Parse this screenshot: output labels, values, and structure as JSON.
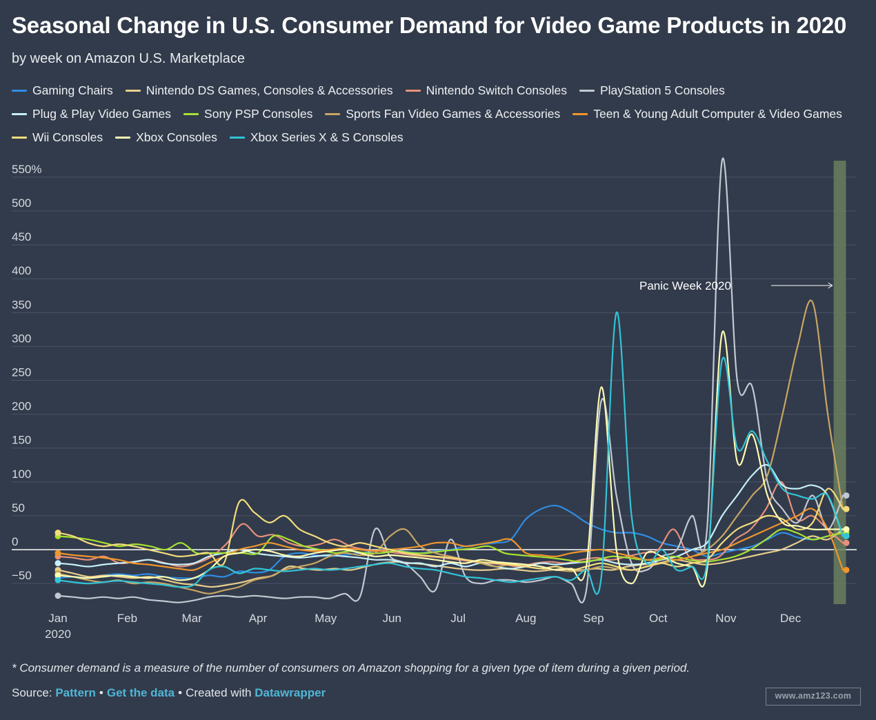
{
  "title": "Seasonal Change in U.S. Consumer Demand for Video Game Products in 2020",
  "subtitle": "by week on Amazon U.S. Marketplace",
  "footnote": "* Consumer demand is a measure of the number of consumers on Amazon shopping for a given type of item during a given period.",
  "source": {
    "prefix": "Source:",
    "source_link": "Pattern",
    "data_link": "Get the data",
    "created_text": "Created with",
    "created_link": "Datawrapper",
    "separator": "•"
  },
  "watermark": "www.amz123.com",
  "chart_data": {
    "type": "line",
    "ylim": [
      -80,
      580
    ],
    "y_ticks": [
      -50,
      0,
      50,
      100,
      150,
      200,
      250,
      300,
      350,
      400,
      450,
      500,
      550
    ],
    "y_tick_labels": [
      "−50",
      "0",
      "50",
      "100",
      "150",
      "200",
      "250",
      "300",
      "350",
      "400",
      "450",
      "500",
      "550%"
    ],
    "x_ticks": [
      {
        "week": 0,
        "label": "Jan",
        "sublabel": "2020"
      },
      {
        "week": 4.5,
        "label": "Feb"
      },
      {
        "week": 8.7,
        "label": "Mar"
      },
      {
        "week": 13,
        "label": "Apr"
      },
      {
        "week": 17.4,
        "label": "May"
      },
      {
        "week": 21.7,
        "label": "Jun"
      },
      {
        "week": 26,
        "label": "Jul"
      },
      {
        "week": 30.4,
        "label": "Aug"
      },
      {
        "week": 34.8,
        "label": "Sep"
      },
      {
        "week": 39,
        "label": "Oct"
      },
      {
        "week": 43.4,
        "label": "Nov"
      },
      {
        "week": 47.6,
        "label": "Dec"
      }
    ],
    "x_domain": [
      0,
      51
    ],
    "annotation": {
      "label": "Panic Week 2020",
      "band_start_week": 50.4,
      "band_end_week": 51.2
    },
    "series": [
      {
        "name": "Gaming Chairs",
        "color": "#2f8de4",
        "values": [
          -42,
          -40,
          -42,
          -38,
          -36,
          -38,
          -36,
          -40,
          -42,
          -42,
          -38,
          -40,
          -32,
          -34,
          -30,
          -10,
          -5,
          -8,
          -10,
          -8,
          -5,
          -2,
          0,
          -3,
          -5,
          -2,
          0,
          5,
          8,
          10,
          15,
          45,
          60,
          65,
          55,
          40,
          30,
          25,
          25,
          20,
          10,
          5,
          0,
          -10,
          -5,
          0,
          5,
          15,
          25,
          18,
          15,
          20,
          25
        ]
      },
      {
        "name": "Nintendo DS Games, Consoles & Accessories",
        "color": "#e9cf8e",
        "values": [
          -30,
          -35,
          -40,
          -38,
          -40,
          -42,
          -40,
          -45,
          -50,
          -52,
          -55,
          -52,
          -48,
          -42,
          -38,
          -25,
          -28,
          -30,
          -28,
          -30,
          -25,
          -20,
          -18,
          -20,
          -22,
          -25,
          -28,
          -30,
          -30,
          -28,
          -30,
          -32,
          -30,
          -28,
          -30,
          -28,
          -30,
          -25,
          -22,
          -20,
          -15,
          -18,
          -22,
          -20,
          -15,
          -10,
          -5,
          0,
          10,
          20,
          15,
          30
        ]
      },
      {
        "name": "Nintendo Switch Consoles",
        "color": "#e7917b",
        "values": [
          -10,
          -12,
          -15,
          -10,
          -20,
          -18,
          -15,
          -20,
          -25,
          -20,
          -10,
          10,
          38,
          20,
          22,
          10,
          5,
          8,
          15,
          5,
          0,
          -2,
          -5,
          -8,
          -10,
          -12,
          -15,
          -18,
          -20,
          -22,
          -25,
          -20,
          -18,
          -20,
          -15,
          -12,
          -15,
          -10,
          -5,
          0,
          30,
          -10,
          -15,
          -10,
          15,
          30,
          60,
          100,
          45,
          50,
          30,
          10
        ]
      },
      {
        "name": "PlayStation 5 Consoles",
        "color": "#c3c9d3",
        "values": [
          -68,
          -70,
          -72,
          -70,
          -72,
          -70,
          -74,
          -76,
          -78,
          -75,
          -70,
          -68,
          -70,
          -68,
          -70,
          -72,
          -70,
          -70,
          -72,
          -65,
          -70,
          30,
          -10,
          -20,
          -40,
          -60,
          15,
          -40,
          -50,
          -45,
          -45,
          -48,
          -45,
          -40,
          -50,
          -60,
          220,
          80,
          -20,
          -30,
          -10,
          0,
          50,
          30,
          575,
          250,
          240,
          100,
          60,
          40,
          80,
          30,
          80
        ]
      },
      {
        "name": "Plug & Play Video Games",
        "color": "#c7f0fb",
        "values": [
          -20,
          -22,
          -25,
          -22,
          -20,
          -18,
          -15,
          -20,
          -22,
          -20,
          -10,
          -5,
          0,
          -5,
          -8,
          -10,
          -12,
          -10,
          -8,
          -10,
          -12,
          -15,
          -15,
          -20,
          -20,
          -25,
          -20,
          -25,
          -20,
          -25,
          -28,
          -25,
          -20,
          -22,
          -20,
          -18,
          -15,
          -20,
          -22,
          -20,
          -15,
          -10,
          0,
          10,
          50,
          80,
          110,
          125,
          95,
          90,
          95,
          80,
          20
        ]
      },
      {
        "name": "Sony PSP Consoles",
        "color": "#a6e231",
        "values": [
          20,
          18,
          15,
          10,
          5,
          8,
          5,
          0,
          10,
          -5,
          -5,
          -5,
          -5,
          -5,
          20,
          15,
          5,
          0,
          -5,
          -2,
          -5,
          -5,
          -2,
          -5,
          -5,
          -2,
          0,
          2,
          5,
          -5,
          -8,
          -10,
          -12,
          -15,
          -18,
          -15,
          -10,
          -12,
          -15,
          -15,
          -10,
          -15,
          -18,
          -15,
          -10,
          0,
          15,
          30,
          25,
          15,
          20,
          25
        ]
      },
      {
        "name": "Sports Fan Video Games & Accessories",
        "color": "#c9a664",
        "values": [
          -35,
          -40,
          -45,
          -48,
          -45,
          -50,
          -48,
          -50,
          -55,
          -60,
          -65,
          -60,
          -55,
          -45,
          -40,
          -30,
          -25,
          -20,
          -10,
          -5,
          -8,
          -5,
          20,
          30,
          5,
          -5,
          -10,
          -15,
          -20,
          -25,
          -22,
          -25,
          -28,
          -30,
          -32,
          -30,
          -25,
          -28,
          -30,
          -25,
          -20,
          -15,
          -10,
          0,
          20,
          50,
          80,
          110,
          200,
          300,
          365,
          200,
          60
        ]
      },
      {
        "name": "Teen & Young Adult Computer & Video Games",
        "color": "#f0962b",
        "values": [
          -5,
          -8,
          -10,
          -12,
          -15,
          -20,
          -22,
          -25,
          -28,
          -30,
          -20,
          -10,
          0,
          5,
          10,
          5,
          0,
          -2,
          0,
          2,
          0,
          -2,
          0,
          2,
          5,
          10,
          10,
          5,
          8,
          12,
          15,
          -5,
          -8,
          -10,
          -5,
          -2,
          0,
          -5,
          -10,
          -15,
          -12,
          -15,
          -10,
          -5,
          0,
          10,
          20,
          30,
          40,
          50,
          60,
          30,
          -30
        ]
      },
      {
        "name": "Wii Consoles",
        "color": "#f4dd7e",
        "values": [
          25,
          20,
          10,
          5,
          8,
          5,
          0,
          -5,
          -10,
          -8,
          -5,
          -20,
          70,
          55,
          40,
          50,
          30,
          20,
          10,
          5,
          10,
          5,
          0,
          -5,
          -8,
          -10,
          -12,
          -15,
          -18,
          -20,
          -22,
          -25,
          -28,
          -25,
          -30,
          -25,
          -20,
          -25,
          -30,
          -25,
          -20,
          -25,
          -20,
          -15,
          10,
          30,
          40,
          50,
          45,
          30,
          40,
          90,
          60
        ]
      },
      {
        "name": "Xbox Consoles",
        "color": "#fffcb4",
        "values": [
          -38,
          -40,
          -42,
          -40,
          -38,
          -40,
          -42,
          -40,
          -45,
          -42,
          -30,
          -10,
          -5,
          0,
          -2,
          -8,
          -10,
          -5,
          -2,
          0,
          -5,
          -10,
          -8,
          -10,
          -12,
          -15,
          -18,
          -20,
          -15,
          -18,
          -20,
          -22,
          -25,
          -30,
          -28,
          -25,
          240,
          0,
          -50,
          -5,
          -10,
          -20,
          -25,
          -30,
          320,
          130,
          170,
          80,
          40,
          35,
          30,
          30,
          30
        ]
      },
      {
        "name": "Xbox Series X & S Consoles",
        "color": "#33c4d7",
        "values": [
          -45,
          -48,
          -50,
          -48,
          -46,
          -48,
          -50,
          -52,
          -55,
          -52,
          -30,
          -25,
          -35,
          -28,
          -30,
          -32,
          -30,
          -28,
          -30,
          -28,
          -25,
          -22,
          -20,
          -25,
          -28,
          -30,
          -35,
          -40,
          -42,
          -45,
          -48,
          -45,
          -42,
          -40,
          -45,
          -30,
          -40,
          350,
          50,
          -20,
          0,
          -30,
          -25,
          -20,
          280,
          150,
          175,
          130,
          90,
          80,
          75,
          80,
          20
        ]
      }
    ]
  }
}
